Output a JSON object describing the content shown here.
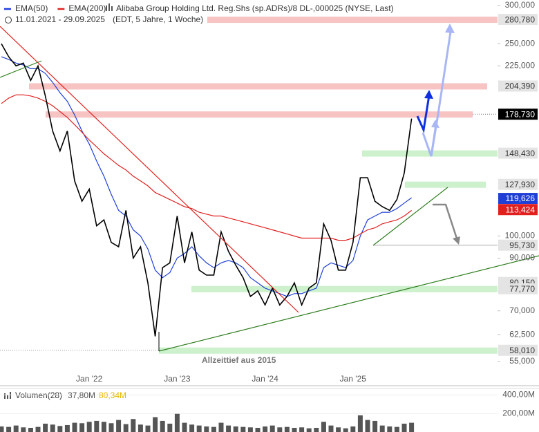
{
  "chart_data": [
    {
      "type": "line",
      "title": "Alibaba Group Holding Ltd. Reg.Shs (sp.ADRs)/8 DL-,000025 (NYSE, Last)",
      "subtitle": "11.01.2021 - 29.09.2025",
      "period_note": "(EDT, 5 Jahre, 1 Woche)",
      "annotation": "Allzeittief aus 2015",
      "log_scale": true,
      "categories": [
        null,
        null,
        null,
        null,
        null,
        null,
        null,
        null,
        null,
        null,
        null,
        null,
        "Jan '22",
        null,
        null,
        null,
        null,
        null,
        null,
        null,
        null,
        null,
        null,
        null,
        "Jan '23",
        null,
        null,
        null,
        null,
        null,
        null,
        null,
        null,
        null,
        null,
        null,
        "Jan '24",
        null,
        null,
        null,
        null,
        null,
        null,
        null,
        null,
        null,
        null,
        null,
        "Jan '25",
        null,
        null,
        null,
        null,
        null,
        null,
        null,
        null
      ],
      "values": [
        250,
        235,
        225,
        228,
        210,
        225,
        195,
        165,
        150,
        165,
        130,
        118,
        125,
        105,
        108,
        97,
        95,
        113,
        90,
        95,
        80,
        62,
        86,
        88,
        110,
        88,
        102,
        85,
        83,
        83,
        102,
        93,
        87,
        82,
        75,
        77,
        72,
        78,
        72,
        75,
        80,
        72,
        78,
        80,
        106,
        98,
        85,
        85,
        97,
        132,
        132,
        118,
        115,
        113,
        119,
        135,
        175
      ],
      "color": "#000000",
      "series": [
        {
          "name": "EMA(50)",
          "color": "#1f3fd6",
          "values": [
            235,
            232,
            228,
            226,
            222,
            222,
            217,
            208,
            198,
            190,
            178,
            165,
            155,
            143,
            133,
            122,
            113,
            110,
            103,
            100,
            94,
            85,
            82,
            84,
            90,
            92,
            95,
            91,
            88,
            86,
            88,
            89,
            88,
            86,
            82,
            80,
            78,
            77,
            76,
            75,
            76,
            76,
            77,
            78,
            86,
            88,
            87,
            86,
            89,
            100,
            108,
            110,
            112,
            112,
            114,
            117,
            120
          ]
        },
        {
          "name": "EMA(200)",
          "color": "#e0201f",
          "values": [
            188,
            193,
            196,
            196,
            195,
            193,
            190,
            186,
            181,
            176,
            170,
            164,
            158,
            153,
            148,
            144,
            140,
            137,
            133,
            130,
            127,
            123,
            121,
            119,
            117,
            115,
            114,
            112,
            111,
            110,
            110,
            109,
            108,
            107,
            106,
            105,
            104,
            103,
            102,
            101,
            100,
            99,
            99,
            99,
            99,
            99,
            98,
            98,
            99,
            101,
            103,
            104,
            106,
            107,
            108,
            110,
            113
          ]
        }
      ],
      "ylim": [
        49,
        308
      ],
      "yticks": [
        {
          "value": 300,
          "label": "300,000"
        },
        {
          "value": 250,
          "label": "250,000"
        },
        {
          "value": 225,
          "label": "225,000"
        },
        {
          "value": 100,
          "label": "100,000"
        },
        {
          "value": 90,
          "label": "90,000"
        },
        {
          "value": 70,
          "label": "70,000"
        },
        {
          "value": 62.5,
          "label": "62,500"
        },
        {
          "value": 55,
          "label": "55,000"
        }
      ],
      "levels": [
        {
          "value": 280.78,
          "label": "280,780",
          "color": "#e4e4e4",
          "band": "#f6bcbc"
        },
        {
          "value": 204.39,
          "label": "204,390",
          "color": "#e4e4e4",
          "band": "#f6bcbc"
        },
        {
          "value": 178.73,
          "label": "178,730",
          "color": "#000000",
          "band": "#f6bcbc"
        },
        {
          "value": 148.43,
          "label": "148,430",
          "color": "#e4e4e4",
          "band": "#c6efc6"
        },
        {
          "value": 127.93,
          "label": "127,930",
          "color": "#e4e4e4",
          "band": "#c6efc6"
        },
        {
          "value": 119.626,
          "label": "119,626",
          "color": "#1f3fd6",
          "band": null
        },
        {
          "value": 113.424,
          "label": "113,424",
          "color": "#e0201f",
          "band": null
        },
        {
          "value": 95.73,
          "label": "95,730",
          "color": "#e4e4e4",
          "band": null
        },
        {
          "value": 80.15,
          "label": "80,150",
          "color": "#e4e4e4",
          "band": null
        },
        {
          "value": 77.77,
          "label": "77,770",
          "color": "#e4e4e4",
          "band": "#c6efc6"
        },
        {
          "value": 58.01,
          "label": "58,010",
          "color": "#e4e4e4",
          "band": "#c6efc6"
        }
      ]
    },
    {
      "type": "bar",
      "title": "Volumen(28)",
      "readings": [
        {
          "text": "37,80M",
          "color": "#555555"
        },
        {
          "text": "80,34M",
          "color": "#e8b800"
        }
      ],
      "color": "#555555",
      "values": [
        60,
        55,
        70,
        50,
        45,
        55,
        90,
        80,
        65,
        75,
        100,
        95,
        110,
        120,
        110,
        95,
        130,
        85,
        140,
        80,
        70,
        160,
        120,
        90,
        200,
        100,
        80,
        70,
        60,
        55,
        100,
        70,
        60,
        55,
        50,
        45,
        60,
        70,
        50,
        55,
        45,
        50,
        40,
        45,
        110,
        70,
        50,
        40,
        60,
        180,
        130,
        120,
        70,
        60,
        55,
        90,
        100
      ],
      "ylim": [
        0,
        470
      ],
      "yticks": [
        {
          "value": 200,
          "label": "200,00M"
        },
        {
          "value": 400,
          "label": "400,00M"
        }
      ]
    }
  ]
}
